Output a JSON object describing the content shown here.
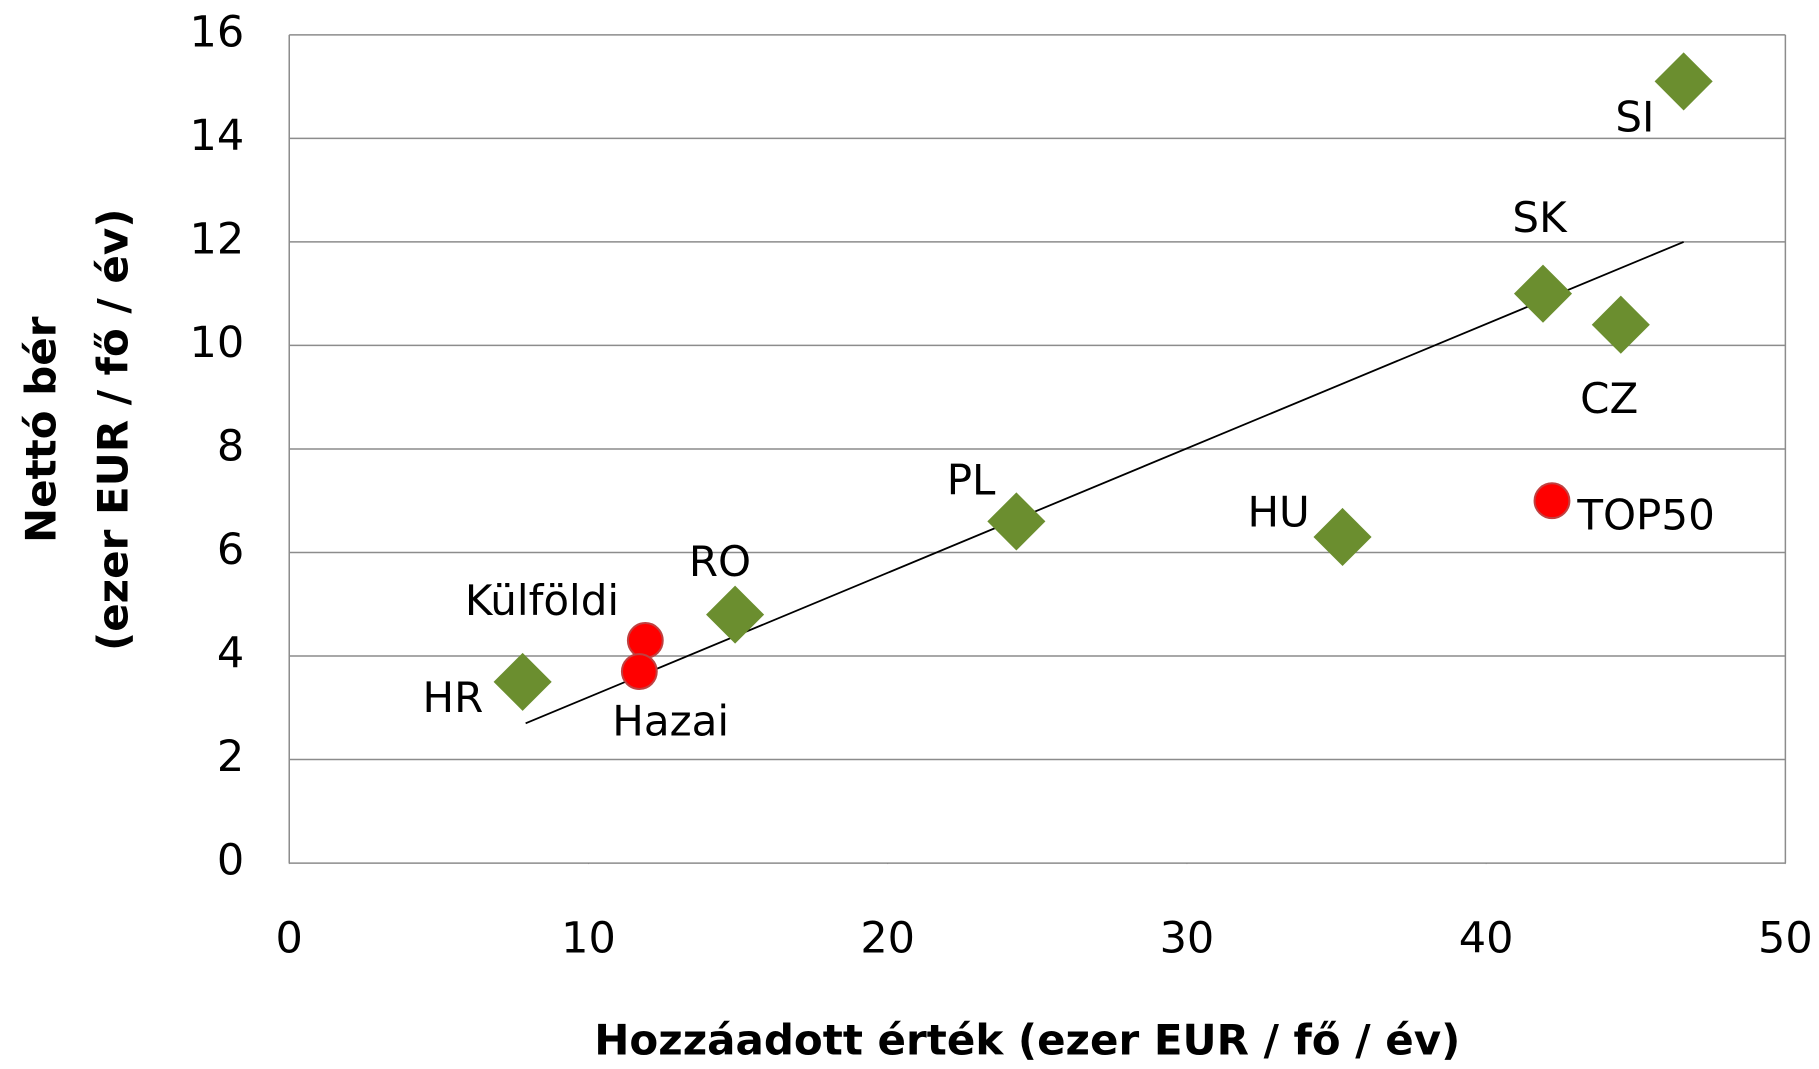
{
  "chart_data": {
    "type": "scatter",
    "x_label": "Hozzáadott érték (ezer EUR / fő / év)",
    "y_label_lines": [
      "Nettó bér",
      "(ezer EUR / fő / év)"
    ],
    "xlim": [
      0,
      50
    ],
    "xticks": [
      0,
      10,
      20,
      30,
      40,
      50
    ],
    "ylim": [
      0,
      16
    ],
    "yticks": [
      0,
      2,
      4,
      6,
      8,
      10,
      12,
      14,
      16
    ],
    "grid": true,
    "series": [
      {
        "color": "#6b8e2f",
        "marker": "diamond",
        "labels": [
          "HR",
          "RO",
          "PL",
          "HU",
          "SK",
          "CZ",
          "SI"
        ],
        "x": [
          7.8,
          14.9,
          24.3,
          35.2,
          41.9,
          44.5,
          46.6
        ],
        "values": [
          3.5,
          4.8,
          6.6,
          6.3,
          11.0,
          10.4,
          15.1
        ]
      },
      {
        "color": "#ff0000",
        "marker": "circle",
        "labels": [
          "Külföldi",
          "Hazai",
          "TOP50"
        ],
        "x": [
          11.9,
          11.7,
          42.2
        ],
        "values": [
          4.3,
          3.7,
          7.0
        ]
      }
    ],
    "trendline": {
      "color": "#000000",
      "x": [
        7.9,
        46.6
      ],
      "values": [
        2.7,
        12.0
      ]
    }
  }
}
